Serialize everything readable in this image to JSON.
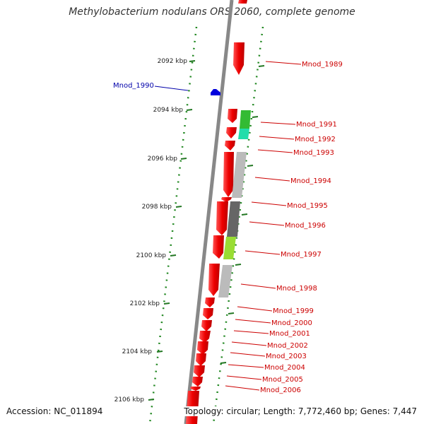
{
  "title": "Methylobacterium nodulans ORS 2060, complete genome",
  "footer": {
    "accession": "Accession: NC_011894",
    "summary": "Topology: circular; Length: 7,772,460 bp; Genes: 7,447"
  },
  "scale_labels": [
    "2092 kbp",
    "2094 kbp",
    "2096 kbp",
    "2098 kbp",
    "2100 kbp",
    "2102 kbp",
    "2104 kbp",
    "2106 kbp"
  ],
  "genes": [
    {
      "label": "Mnod_1989",
      "color": "#cc0000"
    },
    {
      "label": "Mnod_1990",
      "color": "#0000aa"
    },
    {
      "label": "Mnod_1991",
      "color": "#cc0000"
    },
    {
      "label": "Mnod_1992",
      "color": "#cc0000"
    },
    {
      "label": "Mnod_1993",
      "color": "#cc0000"
    },
    {
      "label": "Mnod_1994",
      "color": "#cc0000"
    },
    {
      "label": "Mnod_1995",
      "color": "#cc0000"
    },
    {
      "label": "Mnod_1996",
      "color": "#cc0000"
    },
    {
      "label": "Mnod_1997",
      "color": "#cc0000"
    },
    {
      "label": "Mnod_1998",
      "color": "#cc0000"
    },
    {
      "label": "Mnod_1999",
      "color": "#cc0000"
    },
    {
      "label": "Mnod_2000",
      "color": "#cc0000"
    },
    {
      "label": "Mnod_2001",
      "color": "#cc0000"
    },
    {
      "label": "Mnod_2002",
      "color": "#cc0000"
    },
    {
      "label": "Mnod_2003",
      "color": "#cc0000"
    },
    {
      "label": "Mnod_2004",
      "color": "#cc0000"
    },
    {
      "label": "Mnod_2005",
      "color": "#cc0000"
    },
    {
      "label": "Mnod_2006",
      "color": "#cc0000"
    }
  ],
  "colors": {
    "gene_fill": "#ee0000",
    "backbone": "#888888",
    "dotted_track": "#228822",
    "function_gray": "#bbbbbb",
    "function_dark_gray": "#666666",
    "function_green": "#33bb33",
    "function_teal": "#22ddaa",
    "function_lime": "#99dd33"
  }
}
